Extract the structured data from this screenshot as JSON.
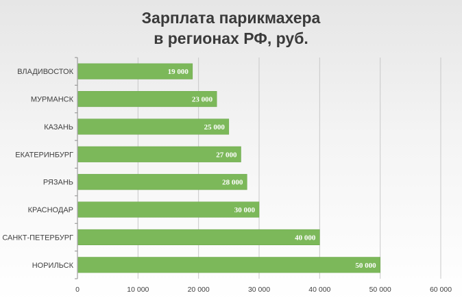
{
  "chart_data": {
    "type": "bar",
    "orientation": "horizontal",
    "title_line1": "Зарплата парикмахера",
    "title_line2": "в регионах РФ, руб.",
    "categories": [
      "ВЛАДИВОСТОК",
      "МУРМАНСК",
      "КАЗАНЬ",
      "ЕКАТЕРИНБУРГ",
      "РЯЗАНЬ",
      "КРАСНОДАР",
      "САНКТ-ПЕТЕРБУРГ",
      "НОРИЛЬСК"
    ],
    "values": [
      19000,
      23000,
      25000,
      27000,
      28000,
      30000,
      40000,
      50000
    ],
    "data_labels": [
      "19 000",
      "23 000",
      "25 000",
      "27 000",
      "28 000",
      "30 000",
      "40 000",
      "50 000"
    ],
    "x_ticks": [
      0,
      10000,
      20000,
      30000,
      40000,
      50000,
      60000
    ],
    "x_tick_labels": [
      "0",
      "10 000",
      "20 000",
      "30 000",
      "40 000",
      "50 000",
      "60 000"
    ],
    "xlim": [
      0,
      60000
    ],
    "grid": true,
    "legend": false,
    "bar_color": "#7cb85a",
    "grid_color": "#c8c8c8"
  }
}
